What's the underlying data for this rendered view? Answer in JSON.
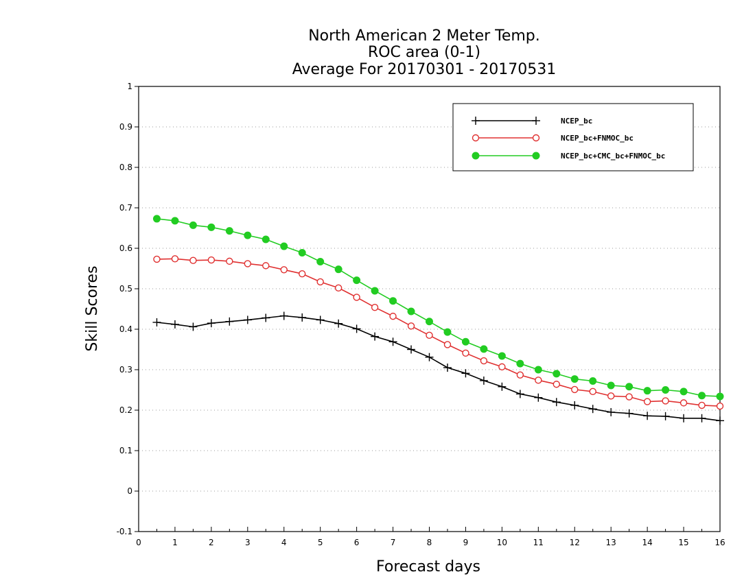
{
  "chart_data": {
    "type": "line",
    "title": [
      "North American 2 Meter Temp.",
      "ROC area (0-1)",
      "Average For 20170301 - 20170531"
    ],
    "xlabel": "Forecast days",
    "ylabel": "Skill Scores",
    "xlim": [
      0,
      16
    ],
    "ylim": [
      -0.1,
      1
    ],
    "xticks": [
      0,
      1,
      2,
      3,
      4,
      5,
      6,
      7,
      8,
      9,
      10,
      11,
      12,
      13,
      14,
      15,
      16
    ],
    "yticks": [
      -0.1,
      0,
      0.1,
      0.2,
      0.3,
      0.4,
      0.5,
      0.6,
      0.7,
      0.8,
      0.9,
      1
    ],
    "ytick_labels": [
      "-0.1",
      "0",
      "0.1",
      "0.2",
      "0.3",
      "0.4",
      "0.5",
      "0.6",
      "0.7",
      "0.8",
      "0.9",
      "1"
    ],
    "grid": "horizontal-dotted",
    "legend_position": "top-right",
    "x": [
      0.5,
      1,
      1.5,
      2,
      2.5,
      3,
      3.5,
      4,
      4.5,
      5,
      5.5,
      6,
      6.5,
      7,
      7.5,
      8,
      8.5,
      9,
      9.5,
      10,
      10.5,
      11,
      11.5,
      12,
      12.5,
      13,
      13.5,
      14,
      14.5,
      15,
      15.5,
      16
    ],
    "series": [
      {
        "name": "NCEP_bc",
        "color": "#000000",
        "marker": "plus",
        "values": [
          0.417,
          0.412,
          0.406,
          0.415,
          0.419,
          0.423,
          0.428,
          0.433,
          0.429,
          0.423,
          0.414,
          0.401,
          0.382,
          0.369,
          0.35,
          0.331,
          0.305,
          0.291,
          0.273,
          0.258,
          0.24,
          0.231,
          0.22,
          0.212,
          0.203,
          0.195,
          0.192,
          0.186,
          0.185,
          0.18,
          0.18,
          0.174
        ]
      },
      {
        "name": "NCEP_bc+FNMOC_bc",
        "color": "#e03030",
        "marker": "open-circle",
        "values": [
          0.573,
          0.574,
          0.57,
          0.571,
          0.568,
          0.562,
          0.557,
          0.547,
          0.537,
          0.517,
          0.502,
          0.479,
          0.454,
          0.432,
          0.408,
          0.385,
          0.362,
          0.341,
          0.322,
          0.307,
          0.287,
          0.274,
          0.264,
          0.251,
          0.246,
          0.235,
          0.233,
          0.221,
          0.223,
          0.218,
          0.212,
          0.21
        ]
      },
      {
        "name": "NCEP_bc+CMC_bc+FNMOC_bc",
        "color": "#22cc22",
        "marker": "filled-circle",
        "values": [
          0.673,
          0.668,
          0.657,
          0.652,
          0.643,
          0.632,
          0.622,
          0.605,
          0.589,
          0.567,
          0.548,
          0.521,
          0.495,
          0.47,
          0.444,
          0.419,
          0.393,
          0.369,
          0.351,
          0.334,
          0.315,
          0.3,
          0.29,
          0.277,
          0.272,
          0.261,
          0.258,
          0.248,
          0.25,
          0.246,
          0.236,
          0.234
        ]
      }
    ]
  }
}
